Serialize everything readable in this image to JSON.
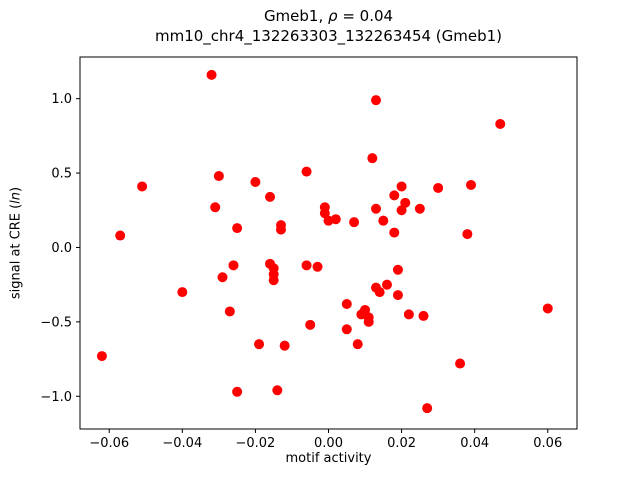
{
  "figure": {
    "title": {
      "prefix": "Gmeb1, ",
      "rho": "ρ",
      "suffix": " = 0.04"
    },
    "subtitle": "mm10_chr4_132263303_132263454 (Gmeb1)",
    "xlabel": "motif activity",
    "ylabel": {
      "prefix": "signal at CRE (",
      "italic": "ln",
      "suffix": ")"
    }
  },
  "chart_data": {
    "type": "scatter",
    "title": "Gmeb1, ρ = 0.04",
    "subtitle": "mm10_chr4_132263303_132263454 (Gmeb1)",
    "xlabel": "motif activity",
    "ylabel": "signal at CRE (ln)",
    "xlim": [
      -0.068,
      0.068
    ],
    "ylim": [
      -1.22,
      1.28
    ],
    "xticks": [
      -0.06,
      -0.04,
      -0.02,
      0.0,
      0.02,
      0.04,
      0.06
    ],
    "yticks": [
      -1.0,
      -0.5,
      0.0,
      0.5,
      1.0
    ],
    "grid": false,
    "legend": "none",
    "marker_color": "#ff0000",
    "marker_radius_px": 5,
    "points": [
      [
        -0.062,
        -0.73
      ],
      [
        -0.057,
        0.08
      ],
      [
        -0.051,
        0.41
      ],
      [
        -0.04,
        -0.3
      ],
      [
        -0.032,
        1.16
      ],
      [
        -0.031,
        0.27
      ],
      [
        -0.03,
        0.48
      ],
      [
        -0.029,
        -0.2
      ],
      [
        -0.027,
        -0.43
      ],
      [
        -0.026,
        -0.12
      ],
      [
        -0.025,
        0.13
      ],
      [
        -0.025,
        -0.97
      ],
      [
        -0.02,
        0.44
      ],
      [
        -0.019,
        -0.65
      ],
      [
        -0.016,
        0.34
      ],
      [
        -0.016,
        -0.11
      ],
      [
        -0.015,
        -0.14
      ],
      [
        -0.015,
        -0.18
      ],
      [
        -0.015,
        -0.22
      ],
      [
        -0.014,
        -0.96
      ],
      [
        -0.013,
        0.15
      ],
      [
        -0.013,
        0.12
      ],
      [
        -0.012,
        -0.66
      ],
      [
        -0.006,
        0.51
      ],
      [
        -0.006,
        -0.12
      ],
      [
        -0.005,
        -0.52
      ],
      [
        -0.003,
        -0.13
      ],
      [
        -0.001,
        0.27
      ],
      [
        -0.001,
        0.23
      ],
      [
        0.0,
        0.18
      ],
      [
        0.002,
        0.19
      ],
      [
        0.005,
        -0.38
      ],
      [
        0.005,
        -0.55
      ],
      [
        0.007,
        0.17
      ],
      [
        0.008,
        -0.65
      ],
      [
        0.009,
        -0.45
      ],
      [
        0.01,
        -0.42
      ],
      [
        0.011,
        -0.47
      ],
      [
        0.011,
        -0.5
      ],
      [
        0.012,
        0.6
      ],
      [
        0.013,
        0.99
      ],
      [
        0.013,
        0.26
      ],
      [
        0.013,
        -0.27
      ],
      [
        0.014,
        -0.3
      ],
      [
        0.015,
        0.18
      ],
      [
        0.016,
        -0.25
      ],
      [
        0.018,
        0.35
      ],
      [
        0.018,
        0.1
      ],
      [
        0.019,
        -0.15
      ],
      [
        0.019,
        -0.32
      ],
      [
        0.02,
        0.41
      ],
      [
        0.02,
        0.25
      ],
      [
        0.021,
        0.3
      ],
      [
        0.022,
        -0.45
      ],
      [
        0.025,
        0.26
      ],
      [
        0.026,
        -0.46
      ],
      [
        0.027,
        -1.08
      ],
      [
        0.03,
        0.4
      ],
      [
        0.036,
        -0.78
      ],
      [
        0.038,
        0.09
      ],
      [
        0.039,
        0.42
      ],
      [
        0.047,
        0.83
      ],
      [
        0.06,
        -0.41
      ]
    ]
  }
}
